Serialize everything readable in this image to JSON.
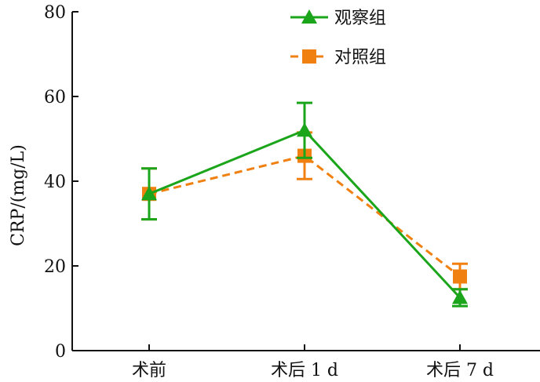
{
  "chart_data": {
    "type": "line",
    "title": "",
    "xlabel": "",
    "ylabel": "CRP/(mg/L)",
    "ylim": [
      0,
      80
    ],
    "yticks": [
      0,
      20,
      40,
      60,
      80
    ],
    "categories": [
      "术前",
      "术后 1 d",
      "术后 7 d"
    ],
    "grid": false,
    "legend_position": "top-right",
    "series": [
      {
        "name": "观察组",
        "values": [
          37,
          52,
          12.5
        ],
        "error": [
          6,
          6.5,
          2
        ],
        "color": "#1aa51a",
        "marker": "triangle",
        "line": "solid"
      },
      {
        "name": "对照组",
        "values": [
          37,
          46,
          17.5
        ],
        "error": [
          6,
          5.5,
          3
        ],
        "color": "#f08010",
        "marker": "square",
        "line": "dashed"
      }
    ]
  }
}
